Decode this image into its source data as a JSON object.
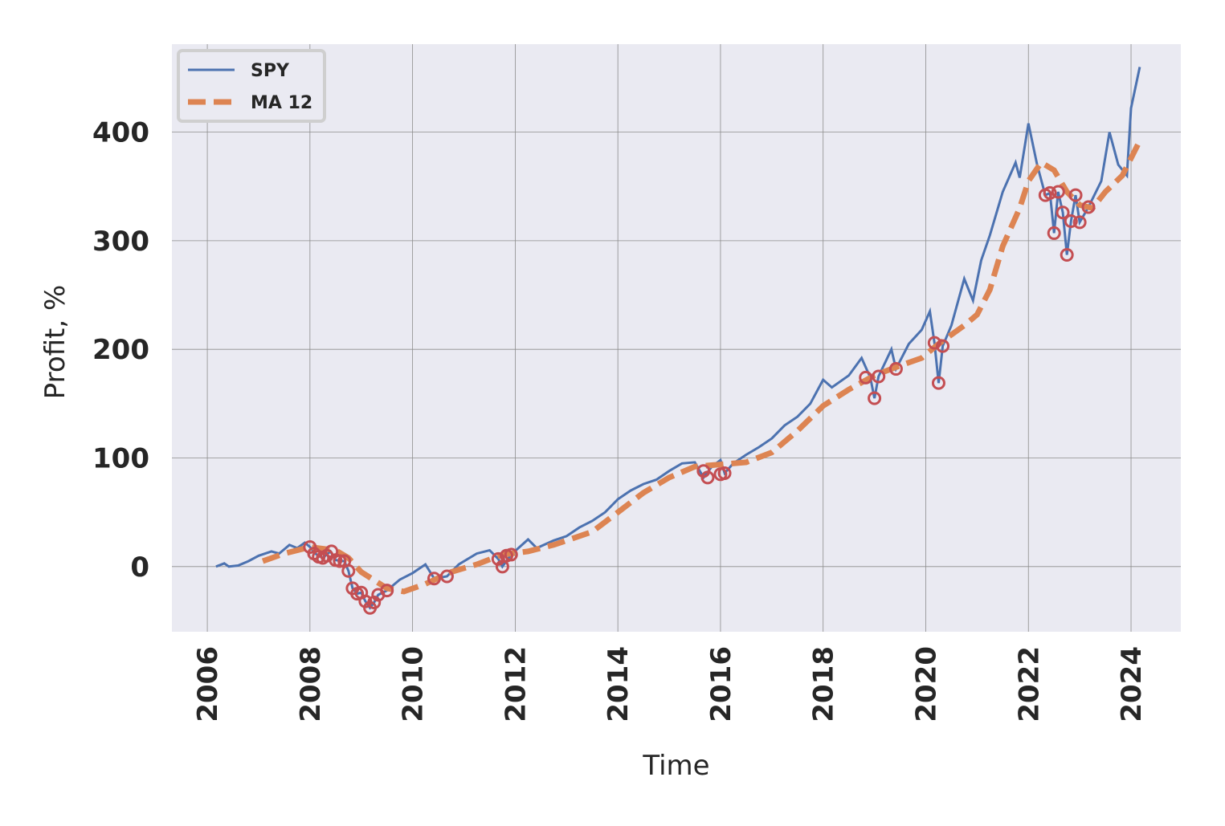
{
  "chart_data": {
    "type": "line",
    "xlabel": "Time",
    "ylabel": "Profit, %",
    "xlim": [
      2005.31,
      2024.97
    ],
    "ylim": [
      -60,
      481
    ],
    "xticks": [
      2006,
      2008,
      2010,
      2012,
      2014,
      2016,
      2018,
      2020,
      2022,
      2024
    ],
    "yticks": [
      0,
      100,
      200,
      300,
      400
    ],
    "grid": true,
    "legend": "upper left",
    "series": [
      {
        "name": "SPY",
        "color": "#4c72b0",
        "dash": "solid",
        "x": [
          2006.17,
          2006.33,
          2006.42,
          2006.6,
          2006.8,
          2007.0,
          2007.25,
          2007.4,
          2007.6,
          2007.75,
          2007.9,
          2008.0,
          2008.1,
          2008.25,
          2008.4,
          2008.5,
          2008.67,
          2008.75,
          2008.83,
          2008.92,
          2009.0,
          2009.08,
          2009.17,
          2009.25,
          2009.33,
          2009.5,
          2009.75,
          2010.0,
          2010.25,
          2010.42,
          2010.67,
          2010.9,
          2011.25,
          2011.5,
          2011.67,
          2011.75,
          2011.92,
          2012.25,
          2012.42,
          2012.75,
          2013.0,
          2013.25,
          2013.5,
          2013.75,
          2014.0,
          2014.25,
          2014.5,
          2014.75,
          2015.0,
          2015.25,
          2015.5,
          2015.67,
          2015.83,
          2016.0,
          2016.08,
          2016.25,
          2016.5,
          2016.75,
          2017.0,
          2017.25,
          2017.5,
          2017.75,
          2018.0,
          2018.17,
          2018.5,
          2018.75,
          2018.92,
          2019.0,
          2019.08,
          2019.33,
          2019.42,
          2019.67,
          2019.92,
          2020.08,
          2020.17,
          2020.25,
          2020.33,
          2020.5,
          2020.75,
          2020.92,
          2021.08,
          2021.25,
          2021.5,
          2021.75,
          2021.83,
          2022.0,
          2022.17,
          2022.33,
          2022.42,
          2022.5,
          2022.58,
          2022.67,
          2022.75,
          2022.83,
          2022.92,
          2023.0,
          2023.17,
          2023.42,
          2023.58,
          2023.75,
          2023.92,
          2024.0,
          2024.17
        ],
        "values": [
          0,
          3,
          0,
          1,
          5,
          10,
          14,
          12,
          20,
          17,
          22,
          18,
          12,
          8,
          14,
          6,
          5,
          -4,
          -20,
          -25,
          -24,
          -32,
          -38,
          -33,
          -26,
          -22,
          -12,
          -6,
          2,
          -11,
          -9,
          2,
          12,
          15,
          7,
          0,
          11,
          25,
          17,
          24,
          28,
          36,
          42,
          50,
          62,
          70,
          76,
          80,
          88,
          95,
          96,
          82,
          92,
          98,
          86,
          95,
          103,
          110,
          118,
          130,
          138,
          150,
          172,
          165,
          176,
          192,
          174,
          155,
          175,
          200,
          182,
          205,
          218,
          235,
          206,
          169,
          203,
          222,
          265,
          245,
          282,
          305,
          345,
          372,
          358,
          408,
          370,
          342,
          344,
          307,
          345,
          326,
          287,
          318,
          342,
          317,
          331,
          355,
          400,
          370,
          360,
          422,
          460
        ]
      },
      {
        "name": "MA 12",
        "color": "#dd8452",
        "dash": "dashed",
        "x": [
          2007.08,
          2007.5,
          2008.0,
          2008.5,
          2008.75,
          2009.0,
          2009.5,
          2009.83,
          2010.25,
          2010.75,
          2011.25,
          2011.75,
          2012.25,
          2012.75,
          2013.5,
          2014.0,
          2014.5,
          2015.0,
          2015.5,
          2016.0,
          2016.5,
          2017.0,
          2017.5,
          2018.0,
          2018.5,
          2019.0,
          2019.5,
          2019.92,
          2020.25,
          2020.75,
          2021.0,
          2021.25,
          2021.5,
          2021.83,
          2022.0,
          2022.25,
          2022.5,
          2022.75,
          2023.0,
          2023.25,
          2023.5,
          2023.83,
          2024.17
        ],
        "values": [
          5,
          12,
          18,
          15,
          8,
          -5,
          -20,
          -23,
          -16,
          -5,
          2,
          11,
          14,
          20,
          32,
          50,
          68,
          82,
          92,
          94,
          96,
          105,
          125,
          148,
          163,
          176,
          185,
          192,
          205,
          222,
          232,
          255,
          295,
          330,
          355,
          372,
          365,
          345,
          333,
          330,
          345,
          360,
          392
        ]
      }
    ],
    "markers": {
      "color": "#c44e52",
      "x": [
        2008.0,
        2008.08,
        2008.17,
        2008.25,
        2008.33,
        2008.42,
        2008.5,
        2008.58,
        2008.67,
        2008.75,
        2008.83,
        2008.92,
        2009.0,
        2009.08,
        2009.17,
        2009.25,
        2009.33,
        2009.5,
        2010.42,
        2010.67,
        2011.67,
        2011.75,
        2011.83,
        2011.92,
        2015.67,
        2015.75,
        2016.0,
        2016.08,
        2018.83,
        2019.0,
        2019.08,
        2019.42,
        2020.17,
        2020.25,
        2020.33,
        2022.33,
        2022.42,
        2022.5,
        2022.58,
        2022.67,
        2022.75,
        2022.83,
        2022.92,
        2023.0,
        2023.17
      ],
      "values": [
        18,
        12,
        9,
        8,
        10,
        14,
        6,
        5,
        5,
        -4,
        -20,
        -25,
        -24,
        -32,
        -38,
        -33,
        -26,
        -22,
        -11,
        -9,
        7,
        0,
        10,
        11,
        88,
        82,
        85,
        86,
        174,
        155,
        175,
        182,
        206,
        169,
        203,
        342,
        344,
        307,
        345,
        326,
        287,
        318,
        342,
        317,
        331
      ]
    }
  }
}
